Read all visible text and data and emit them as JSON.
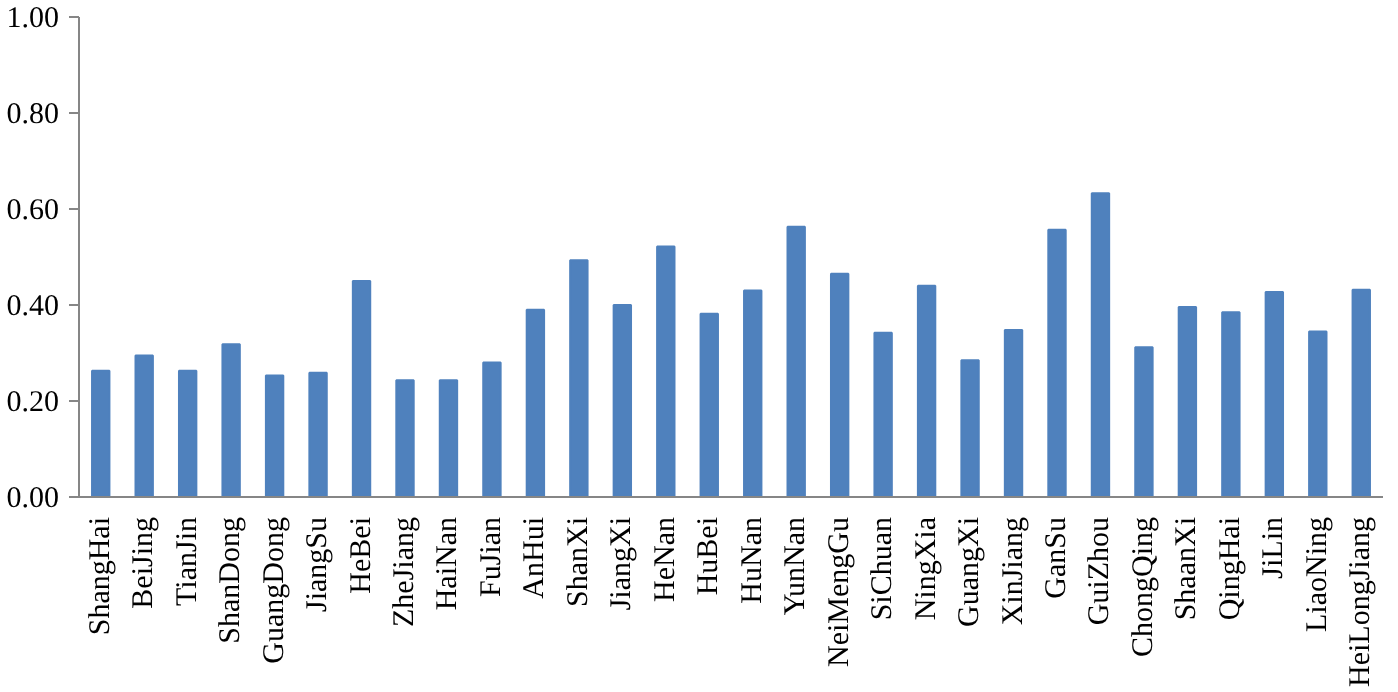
{
  "chart_data": {
    "type": "bar",
    "categories": [
      "ShangHai",
      "BeiJing",
      "TianJin",
      "ShanDong",
      "GuangDong",
      "JiangSu",
      "HeBei",
      "ZheJiang",
      "HaiNan",
      "FuJian",
      "AnHui",
      "ShanXi",
      "JiangXi",
      "HeNan",
      "HuBei",
      "HuNan",
      "YunNan",
      "NeiMengGu",
      "SiChuan",
      "NingXia",
      "GuangXi",
      "XinJiang",
      "GanSu",
      "GuiZhou",
      "ChongQing",
      "ShaanXi",
      "QingHai",
      "JiLin",
      "LiaoNing",
      "HeiLongJiang"
    ],
    "values": [
      0.263,
      0.295,
      0.263,
      0.318,
      0.253,
      0.259,
      0.45,
      0.243,
      0.243,
      0.28,
      0.39,
      0.493,
      0.4,
      0.522,
      0.382,
      0.43,
      0.563,
      0.465,
      0.342,
      0.44,
      0.285,
      0.348,
      0.557,
      0.633,
      0.312,
      0.396,
      0.385,
      0.427,
      0.345,
      0.432
    ],
    "color": "#4f81bd",
    "ylim": [
      0,
      1
    ],
    "yticks": [
      {
        "value": 0,
        "label": "0.00"
      },
      {
        "value": 0.2,
        "label": "0.20"
      },
      {
        "value": 0.4,
        "label": "0.40"
      },
      {
        "value": 0.6,
        "label": "0.60"
      },
      {
        "value": 0.8,
        "label": "0.80"
      },
      {
        "value": 1,
        "label": "1.00"
      }
    ],
    "grid": false
  }
}
